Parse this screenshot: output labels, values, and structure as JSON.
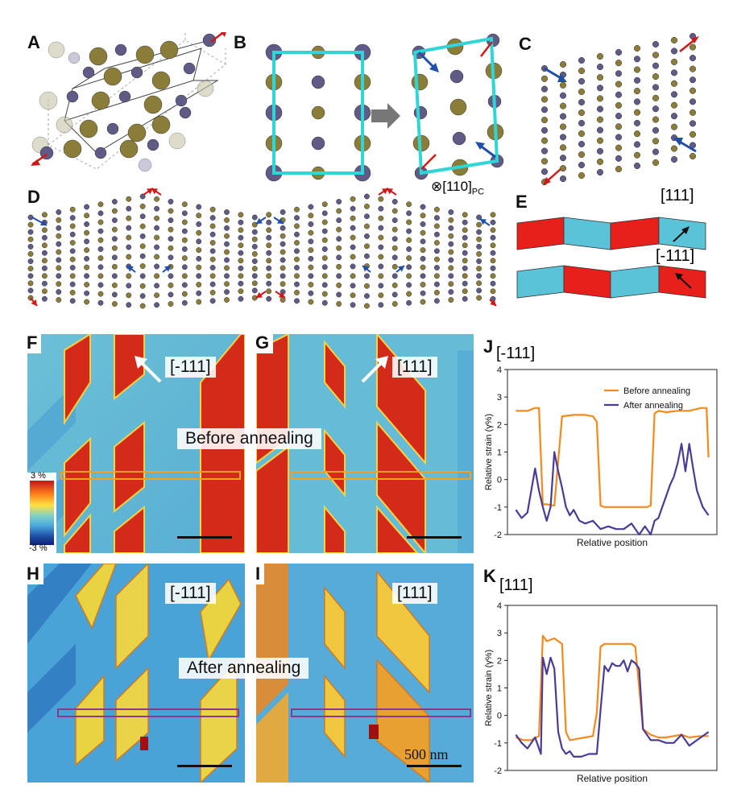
{
  "panel_labels": {
    "A": "A",
    "B": "B",
    "C": "C",
    "D": "D",
    "E": "E",
    "F": "F",
    "G": "G",
    "H": "H",
    "I": "I",
    "J": "J",
    "K": "K"
  },
  "panel_b": {
    "direction_label": "⊗[110]",
    "direction_sub": "PC"
  },
  "panel_e": {
    "top_label": "[111]",
    "bottom_label": "[-111]"
  },
  "maps": {
    "F": {
      "label": "[-111]"
    },
    "G": {
      "label": "[111]"
    },
    "H": {
      "label": "[-111]"
    },
    "I": {
      "label": "[111]"
    },
    "before_caption": "Before annealing",
    "after_caption": "After annealing",
    "scalebar_label": "500 nm"
  },
  "colorbar": {
    "max_label": "3 %",
    "min_label": "-3 %",
    "colors": [
      "#c0161b",
      "#ff7a1a",
      "#ffe040",
      "#7fd0c8",
      "#4aa8dc",
      "#1f50a8",
      "#102070"
    ]
  },
  "colors": {
    "red_domain": "#d42a1a",
    "blue_domain": "#5fb8d6",
    "before": "#f28a1e",
    "after": "#4a3c96",
    "cyan_frame": "#2fd6d6"
  },
  "chart_data": [
    {
      "id": "J",
      "type": "line",
      "title": "[-111]",
      "xlabel": "Relative position",
      "ylabel": "Relative strain (γ%)",
      "ylim": [
        -2,
        4
      ],
      "yticks": [
        -2,
        -1,
        0,
        1,
        2,
        3,
        4
      ],
      "legend": "top-right",
      "series": [
        {
          "name": "Before annealing",
          "x": [
            0,
            0.02,
            0.06,
            0.1,
            0.12,
            0.14,
            0.16,
            0.2,
            0.24,
            0.3,
            0.36,
            0.4,
            0.42,
            0.44,
            0.46,
            0.5,
            0.55,
            0.6,
            0.65,
            0.68,
            0.7,
            0.72,
            0.74,
            0.78,
            0.84,
            0.9,
            0.96,
            0.99,
            1.0
          ],
          "y": [
            2.5,
            2.5,
            2.5,
            2.6,
            2.6,
            -0.9,
            -0.9,
            -0.95,
            2.3,
            2.35,
            2.35,
            2.3,
            2.1,
            -0.95,
            -1.0,
            -1.0,
            -1.0,
            -1.0,
            -1.0,
            -1.0,
            -0.95,
            2.4,
            2.5,
            2.45,
            2.5,
            2.5,
            2.6,
            2.6,
            0.8
          ]
        },
        {
          "name": "After annealing",
          "x": [
            0,
            0.03,
            0.06,
            0.1,
            0.12,
            0.14,
            0.16,
            0.18,
            0.2,
            0.22,
            0.24,
            0.26,
            0.28,
            0.3,
            0.33,
            0.36,
            0.4,
            0.44,
            0.48,
            0.52,
            0.56,
            0.6,
            0.64,
            0.67,
            0.7,
            0.72,
            0.74,
            0.76,
            0.78,
            0.8,
            0.82,
            0.84,
            0.86,
            0.88,
            0.9,
            0.92,
            0.94,
            0.97,
            1.0
          ],
          "y": [
            -1.1,
            -1.4,
            -1.2,
            0.4,
            -0.4,
            -1.0,
            -1.5,
            -1.0,
            1.0,
            0.3,
            -0.3,
            -1.0,
            -1.3,
            -1.1,
            -1.5,
            -1.6,
            -1.5,
            -1.8,
            -1.7,
            -1.8,
            -1.8,
            -1.6,
            -2.0,
            -1.7,
            -2.0,
            -1.5,
            -1.4,
            -1.0,
            -0.6,
            -0.2,
            0.1,
            0.6,
            1.3,
            0.3,
            1.3,
            0.4,
            -0.4,
            -1.0,
            -1.3
          ]
        }
      ]
    },
    {
      "id": "K",
      "type": "line",
      "title": "[111]",
      "xlabel": "Relative position",
      "ylabel": "Relative strain (γ%)",
      "ylim": [
        -2,
        4
      ],
      "yticks": [
        -2,
        -1,
        0,
        1,
        2,
        3,
        4
      ],
      "series": [
        {
          "name": "Before annealing",
          "x": [
            0,
            0.04,
            0.08,
            0.12,
            0.14,
            0.16,
            0.2,
            0.24,
            0.26,
            0.28,
            0.32,
            0.36,
            0.4,
            0.42,
            0.44,
            0.46,
            0.5,
            0.54,
            0.58,
            0.6,
            0.62,
            0.66,
            0.7,
            0.74,
            0.78,
            0.82,
            0.86,
            0.9,
            0.96,
            1.0
          ],
          "y": [
            -0.8,
            -0.9,
            -0.9,
            -0.75,
            2.9,
            2.7,
            2.8,
            2.6,
            -0.6,
            -0.9,
            -0.85,
            -0.8,
            -0.75,
            0.1,
            2.5,
            2.6,
            2.6,
            2.6,
            2.6,
            2.6,
            2.5,
            -0.5,
            -0.7,
            -0.8,
            -0.8,
            -0.75,
            -0.7,
            -0.8,
            -0.75,
            -0.75
          ]
        },
        {
          "name": "After annealing",
          "x": [
            0,
            0.03,
            0.06,
            0.1,
            0.13,
            0.14,
            0.16,
            0.18,
            0.2,
            0.22,
            0.24,
            0.26,
            0.28,
            0.3,
            0.34,
            0.38,
            0.42,
            0.44,
            0.46,
            0.48,
            0.5,
            0.52,
            0.54,
            0.56,
            0.58,
            0.6,
            0.62,
            0.64,
            0.66,
            0.7,
            0.74,
            0.78,
            0.82,
            0.86,
            0.9,
            0.94,
            0.98,
            1.0
          ],
          "y": [
            -0.7,
            -1.0,
            -1.2,
            -0.8,
            -1.4,
            2.1,
            1.5,
            2.1,
            1.7,
            -0.6,
            -1.2,
            -1.4,
            -1.3,
            -1.5,
            -1.5,
            -1.4,
            -1.4,
            0.2,
            1.8,
            1.6,
            1.9,
            1.8,
            1.8,
            2.0,
            1.6,
            2.0,
            1.9,
            1.7,
            -0.5,
            -0.9,
            -0.9,
            -1.0,
            -1.0,
            -0.7,
            -1.1,
            -0.9,
            -0.7,
            -0.6
          ]
        }
      ]
    }
  ]
}
